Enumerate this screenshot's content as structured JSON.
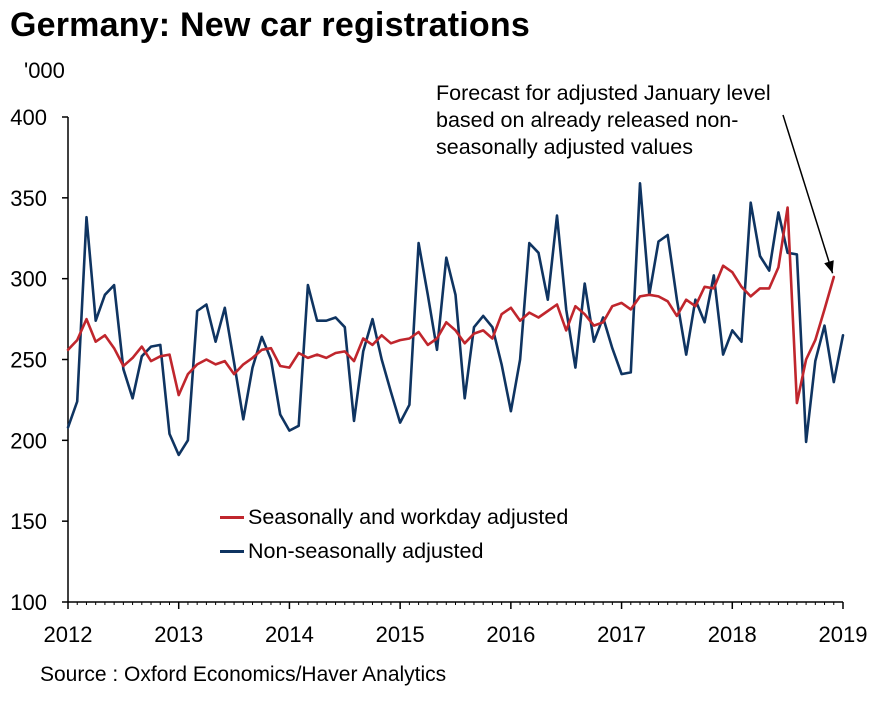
{
  "chart_data": {
    "type": "line",
    "title": "Germany: New car registrations",
    "unit_label": "'000",
    "ylim": [
      100,
      400
    ],
    "yticks": [
      100,
      150,
      200,
      250,
      300,
      350,
      400
    ],
    "xlim": [
      2012,
      2019
    ],
    "xticks": [
      2012,
      2013,
      2014,
      2015,
      2016,
      2017,
      2018,
      2019
    ],
    "source": "Source : Oxford Economics/Haver Analytics",
    "annotation": {
      "lines": [
        "Forecast for adjusted January level",
        "based on already released non-",
        "seasonally adjusted values"
      ]
    },
    "series": [
      {
        "name": "Seasonally and workday adjusted",
        "color": "#c0262d",
        "start": 2012,
        "step_months": 1,
        "values": [
          256,
          262,
          275,
          261,
          265,
          257,
          246,
          251,
          258,
          249,
          252,
          253,
          228,
          241,
          247,
          250,
          247,
          249,
          241,
          247,
          251,
          256,
          257,
          246,
          245,
          254,
          251,
          253,
          251,
          254,
          255,
          249,
          263,
          259,
          265,
          260,
          262,
          263,
          267,
          259,
          263,
          273,
          268,
          260,
          266,
          268,
          263,
          278,
          282,
          274,
          279,
          276,
          280,
          284,
          268,
          283,
          278,
          271,
          273,
          283,
          285,
          281,
          289,
          290,
          289,
          286,
          277,
          287,
          283,
          295,
          294,
          308,
          304,
          295,
          289,
          294,
          294,
          307,
          344,
          223,
          250,
          262,
          281,
          301
        ]
      },
      {
        "name": "Non-seasonally adjusted",
        "color": "#0f3461",
        "start": 2012,
        "step_months": 1,
        "values": [
          208,
          224,
          338,
          274,
          290,
          296,
          244,
          226,
          252,
          258,
          259,
          204,
          191,
          200,
          280,
          284,
          261,
          282,
          248,
          213,
          245,
          264,
          250,
          216,
          206,
          209,
          296,
          274,
          274,
          276,
          270,
          212,
          255,
          275,
          250,
          230,
          211,
          222,
          322,
          290,
          256,
          313,
          290,
          226,
          270,
          277,
          270,
          247,
          218,
          250,
          322,
          316,
          287,
          339,
          281,
          245,
          297,
          261,
          276,
          257,
          241,
          242,
          359,
          290,
          323,
          327,
          287,
          253,
          287,
          273,
          302,
          253,
          268,
          261,
          347,
          314,
          305,
          341,
          316,
          315,
          199,
          249,
          271,
          236,
          265
        ]
      }
    ]
  }
}
